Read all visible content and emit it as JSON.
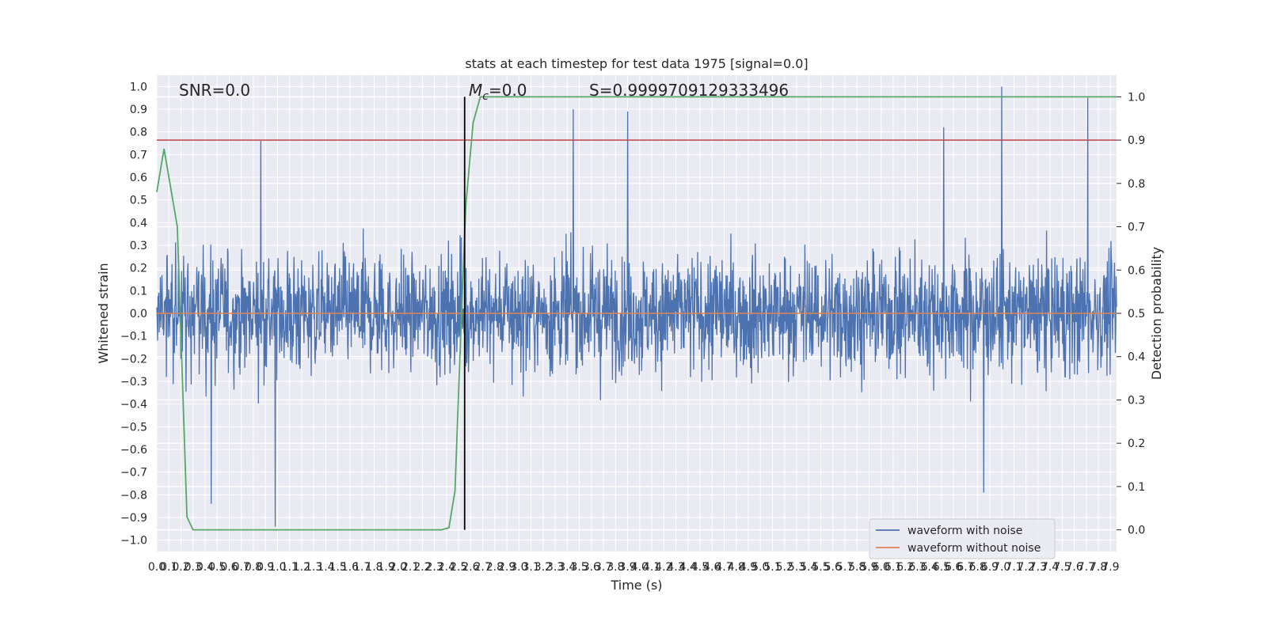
{
  "chart_data": {
    "type": "line",
    "title": "stats at each timestep for test data 1975 [signal=0.0]",
    "xlabel": "Time (s)",
    "ylabel": "Whitened strain",
    "y2label": "Detection probability",
    "xlim": [
      0.0,
      7.95
    ],
    "ylim": [
      -1.05,
      1.05
    ],
    "y2lim": [
      -0.05,
      1.05
    ],
    "x_ticks": [
      0.0,
      0.1,
      0.2,
      0.3,
      0.4,
      0.5,
      0.6,
      0.7,
      0.8,
      0.9,
      1.0,
      1.1,
      1.2,
      1.3,
      1.4,
      1.5,
      1.6,
      1.7,
      1.8,
      1.9,
      2.0,
      2.1,
      2.2,
      2.3,
      2.4,
      2.5,
      2.6,
      2.7,
      2.8,
      2.9,
      3.0,
      3.1,
      3.2,
      3.3,
      3.4,
      3.5,
      3.6,
      3.7,
      3.8,
      3.9,
      4.0,
      4.1,
      4.2,
      4.3,
      4.4,
      4.5,
      4.6,
      4.7,
      4.8,
      4.9,
      5.0,
      5.1,
      5.2,
      5.3,
      5.4,
      5.5,
      5.6,
      5.7,
      5.8,
      5.9,
      6.0,
      6.1,
      6.2,
      6.3,
      6.4,
      6.5,
      6.6,
      6.7,
      6.8,
      6.9,
      7.0,
      7.1,
      7.2,
      7.3,
      7.4,
      7.5,
      7.6,
      7.7,
      7.8,
      7.9
    ],
    "y_ticks": [
      1.0,
      0.9,
      0.8,
      0.7,
      0.6,
      0.5,
      0.4,
      0.3,
      0.2,
      0.1,
      0.0,
      -0.1,
      -0.2,
      -0.3,
      -0.4,
      -0.5,
      -0.6,
      -0.7,
      -0.8,
      -0.9,
      -1.0
    ],
    "y2_ticks": [
      1.0,
      0.9,
      0.8,
      0.7,
      0.6,
      0.5,
      0.4,
      0.3,
      0.2,
      0.1,
      0.0
    ],
    "grid": true,
    "legend_position": "bottom-right",
    "colors": {
      "noisy": "#4c72b0",
      "clean": "#dd8452",
      "probability": "#55a868",
      "threshold": "#c44e52",
      "marker": "#000000",
      "background": "#eaeaf2",
      "grid": "#ffffff"
    },
    "series": [
      {
        "name": "waveform with noise",
        "axis": "left",
        "description_values": {
          "typical_envelope": [
            -0.4,
            0.4
          ],
          "notable_peaks": [
            {
              "x": 0.86,
              "y": 0.76
            },
            {
              "x": 3.45,
              "y": 0.9
            },
            {
              "x": 3.9,
              "y": 0.89
            },
            {
              "x": 6.52,
              "y": 0.82
            },
            {
              "x": 7.0,
              "y": 1.0
            },
            {
              "x": 7.71,
              "y": 0.95
            },
            {
              "x": 0.98,
              "y": -0.94
            },
            {
              "x": 0.45,
              "y": -0.84
            },
            {
              "x": 6.85,
              "y": -0.79
            }
          ]
        }
      },
      {
        "name": "waveform without noise",
        "axis": "left",
        "x": [
          0.0,
          7.95
        ],
        "y": [
          0.0,
          0.0
        ]
      },
      {
        "name": "",
        "axis": "right",
        "x": [
          0.0,
          0.06,
          0.17,
          0.25,
          0.3,
          1.0,
          2.0,
          2.36,
          2.42,
          2.47,
          2.52,
          2.56,
          2.62,
          2.68,
          2.8,
          3.5,
          5.0,
          7.95
        ],
        "y": [
          0.78,
          0.88,
          0.7,
          0.03,
          0.0,
          0.0,
          0.0,
          0.0,
          0.005,
          0.09,
          0.47,
          0.75,
          0.94,
          1.0,
          1.0,
          1.0,
          1.0,
          1.0
        ]
      }
    ],
    "threshold_line": {
      "axis": "right",
      "y": 0.9
    },
    "marker_line": {
      "x": 2.55,
      "axis": "right",
      "y_range": [
        0.0,
        1.0
      ]
    },
    "annotations": {
      "snr": "SNR=0.0",
      "mc_symbol": "M",
      "mc_subscript": "c",
      "mc_value": "=0.0",
      "s": "S=0.9999709129333496"
    }
  }
}
